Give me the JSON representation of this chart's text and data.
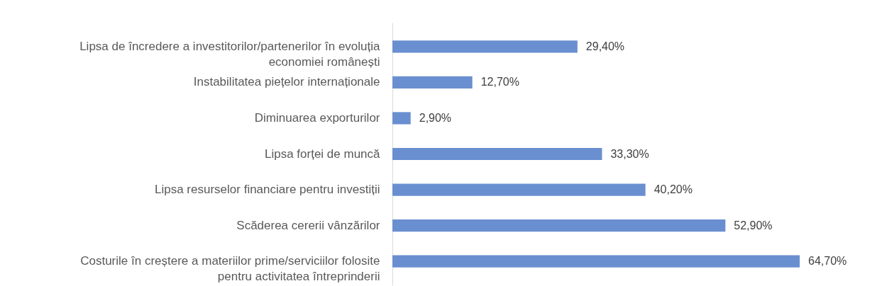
{
  "chart_data": {
    "type": "bar",
    "orientation": "horizontal",
    "categories": [
      "Lipsa de încredere a investitorilor/partenerilor în evoluția economiei românești",
      "Instabilitatea piețelor internaționale",
      "Diminuarea exporturilor",
      "Lipsa forței de muncă",
      "Lipsa resurselor financiare pentru investiții",
      "Scăderea cererii vânzărilor",
      "Costurile în creștere a materiilor prime/serviciilor folosite pentru activitatea întreprinderii"
    ],
    "values": [
      29.4,
      12.7,
      2.9,
      33.3,
      40.2,
      52.9,
      64.7
    ],
    "value_labels": [
      "29,40%",
      "12,70%",
      "2,90%",
      "33,30%",
      "40,20%",
      "52,90%",
      "64,70%"
    ],
    "color": "#6a8fd0"
  }
}
